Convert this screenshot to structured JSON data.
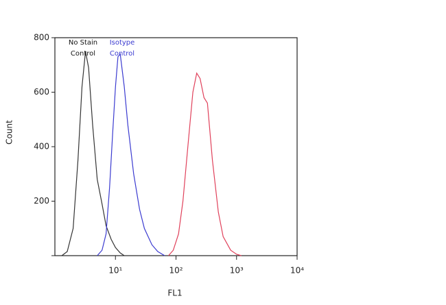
{
  "chart_data": {
    "type": "line",
    "x_label": "FL1",
    "y_label": "Count",
    "x_scale": "log",
    "xlim": [
      1,
      10000
    ],
    "xticks": [
      {
        "value": 10,
        "label": "10¹"
      },
      {
        "value": 100,
        "label": "10²"
      },
      {
        "value": 1000,
        "label": "10³"
      },
      {
        "value": 10000,
        "label": "10⁴"
      }
    ],
    "ylim": [
      0,
      800
    ],
    "yticks": [
      200,
      400,
      600,
      800
    ],
    "series": [
      {
        "color": "#333333",
        "x": [
          1.3,
          1.6,
          2,
          2.4,
          2.8,
          3.2,
          3.6,
          4.2,
          5,
          6,
          7,
          8.5,
          10,
          12,
          14
        ],
        "values": [
          0,
          15,
          100,
          350,
          620,
          750,
          690,
          480,
          280,
          190,
          110,
          60,
          30,
          10,
          0
        ]
      },
      {
        "color": "#3a3ad0",
        "x": [
          5,
          6,
          7,
          8,
          9,
          10,
          11,
          12,
          14,
          16,
          20,
          25,
          30,
          40,
          50,
          65
        ],
        "values": [
          0,
          20,
          80,
          250,
          450,
          620,
          730,
          740,
          620,
          480,
          300,
          170,
          100,
          40,
          15,
          0
        ]
      },
      {
        "color": "#e0405a",
        "x": [
          75,
          90,
          110,
          130,
          160,
          190,
          220,
          250,
          290,
          330,
          400,
          500,
          600,
          800,
          1000,
          1200
        ],
        "values": [
          0,
          20,
          80,
          200,
          420,
          600,
          670,
          650,
          580,
          560,
          350,
          160,
          70,
          20,
          5,
          0
        ]
      }
    ],
    "annotations": [
      {
        "lines": [
          "No Stain",
          "Control"
        ],
        "color": "#111111"
      },
      {
        "lines": [
          "Isotype",
          "Control"
        ],
        "color": "#3a3ad0"
      }
    ]
  }
}
